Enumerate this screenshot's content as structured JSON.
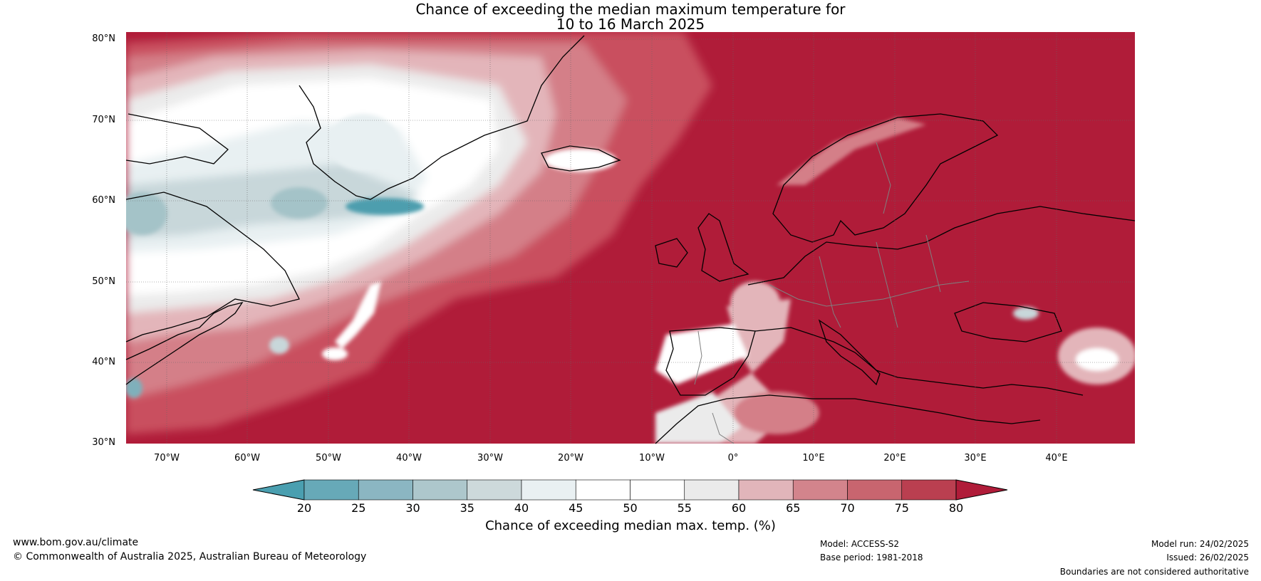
{
  "title": {
    "line1": "Chance of exceeding the median maximum temperature for",
    "line2": "10 to 16 March 2025"
  },
  "map": {
    "lat_labels": [
      "80°N",
      "70°N",
      "60°N",
      "50°N",
      "40°N",
      "30°N"
    ],
    "lon_labels": [
      "70°W",
      "60°W",
      "50°W",
      "40°W",
      "30°W",
      "20°W",
      "10°W",
      "0°",
      "10°E",
      "20°E",
      "30°E",
      "40°E"
    ],
    "colors": {
      "high": "#b01c39",
      "mid_high": "#c9505f",
      "mid": "#d47f88",
      "light_pink": "#e3b5ba",
      "neutral": "#ebebeb",
      "white": "#ffffff",
      "pale_blue": "#e8f0f2",
      "light_blue": "#c8d7da",
      "blue": "#a4c3c8",
      "mid_blue": "#7fb0bb",
      "dark_blue": "#4d9eae",
      "coast": "#000000",
      "border": "#808080"
    }
  },
  "colorbar": {
    "ticks": [
      "20",
      "25",
      "30",
      "35",
      "40",
      "45",
      "50",
      "55",
      "60",
      "65",
      "70",
      "75",
      "80"
    ],
    "label": "Chance of exceeding median max. temp. (%)",
    "colors": [
      "#4a9fb0",
      "#67a9b8",
      "#8bb6c2",
      "#adc7cc",
      "#cdd9db",
      "#e9f0f2",
      "#ffffff",
      "#ffffff",
      "#ebebeb",
      "#e1b5ba",
      "#d3848c",
      "#c8656f",
      "#ba3f50",
      "#b01c39"
    ]
  },
  "footer": {
    "website": "www.bom.gov.au/climate",
    "copyright": "© Commonwealth of Australia 2025, Australian Bureau of Meteorology",
    "model": "Model: ACCESS-S2",
    "base_period": "Base period: 1981-2018",
    "model_run": "Model run: 24/02/2025",
    "issued": "Issued: 26/02/2025",
    "disclaimer": "Boundaries are not considered authoritative"
  }
}
